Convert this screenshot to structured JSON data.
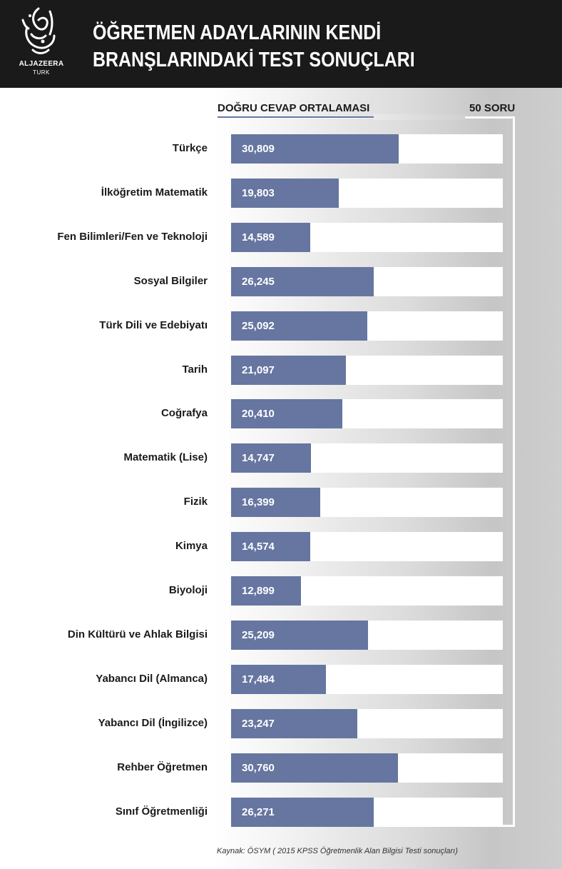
{
  "header": {
    "title_line1": "ÖĞRETMEN ADAYLARININ KENDİ",
    "title_line2": "BRANŞLARINDAKİ TEST SONUÇLARI",
    "logo_name": "ALJAZEERA",
    "logo_sub": "TURK",
    "logo_icon": "aljazeera-calligraphy-logo"
  },
  "legend": {
    "avg_label": "DOĞRU CEVAP ORTALAMASI",
    "max_label": "50 SORU"
  },
  "colors": {
    "bar": "#6676a0",
    "header_bg": "#1a1a1a",
    "track": "#ffffff"
  },
  "chart_data": {
    "type": "bar",
    "orientation": "horizontal",
    "title": "ÖĞRETMEN ADAYLARININ KENDİ BRANŞLARINDAKİ TEST SONUÇLARI",
    "xlabel": "DOĞRU CEVAP ORTALAMASI",
    "ylabel": "",
    "xlim": [
      0,
      50
    ],
    "grid": false,
    "legend": "top",
    "categories": [
      "Türkçe",
      "İlköğretim Matematik",
      "Fen Bilimleri/Fen ve Teknoloji",
      "Sosyal Bilgiler",
      "Türk Dili ve Edebiyatı",
      "Tarih",
      "Coğrafya",
      "Matematik (Lise)",
      "Fizik",
      "Kimya",
      "Biyoloji",
      "Din Kültürü ve Ahlak Bilgisi",
      "Yabancı Dil (Almanca)",
      "Yabancı Dil (İngilizce)",
      "Rehber Öğretmen",
      "Sınıf Öğretmenliği"
    ],
    "values": [
      30.809,
      19.803,
      14.589,
      26.245,
      25.092,
      21.097,
      20.41,
      14.747,
      16.399,
      14.574,
      12.899,
      25.209,
      17.484,
      23.247,
      30.76,
      26.271
    ],
    "value_labels": [
      "30,809",
      "19,803",
      "14,589",
      "26,245",
      "25,092",
      "21,097",
      "20,410",
      "14,747",
      "16,399",
      "14,574",
      "12,899",
      "25,209",
      "17,484",
      "23,247",
      "30,760",
      "26,271"
    ],
    "max_value": 50
  },
  "source": "Kaynak: ÖSYM ( 2015 KPSS Öğretmenlik Alan Bilgisi Testi sonuçları)"
}
